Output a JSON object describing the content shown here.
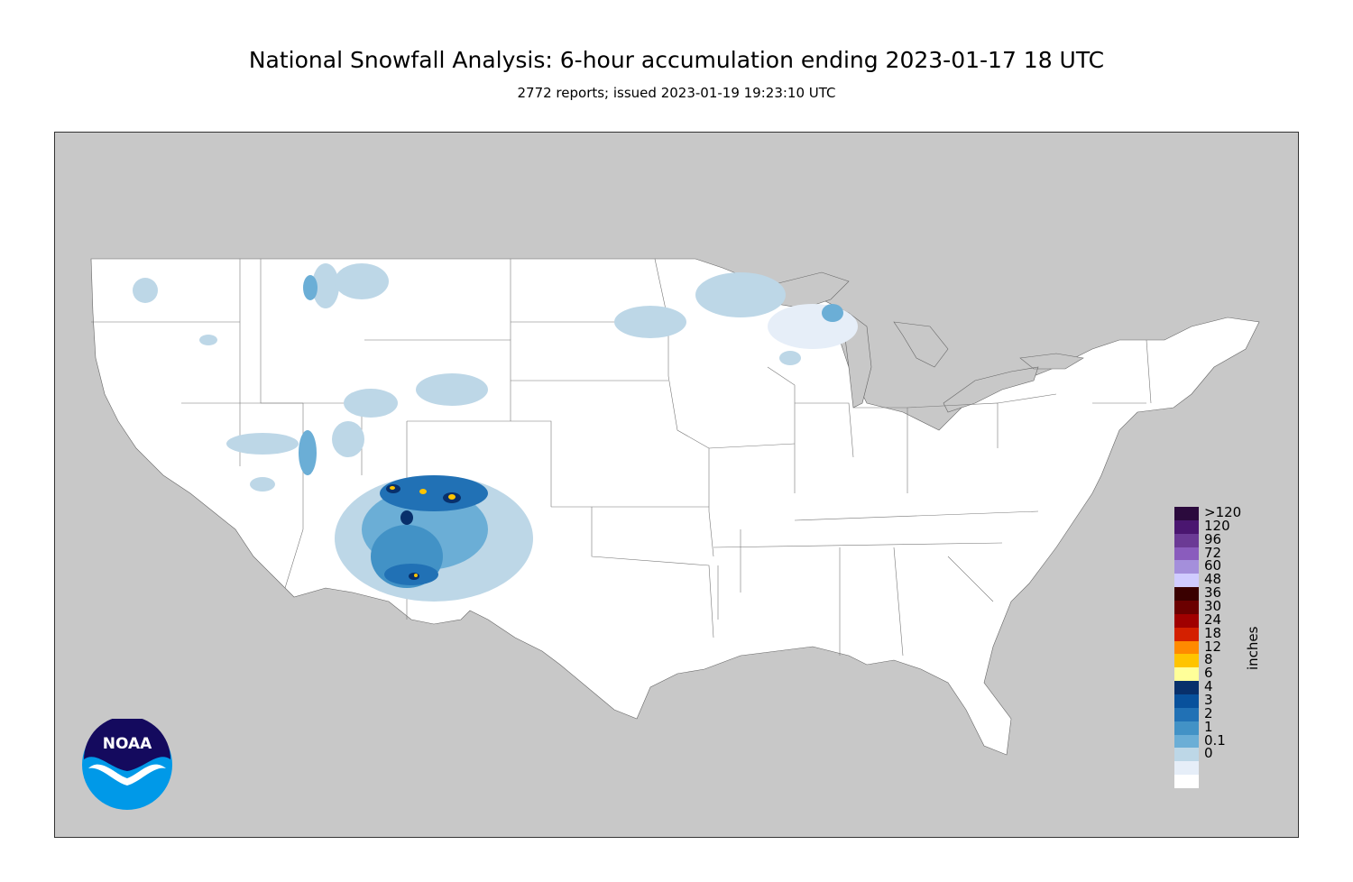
{
  "header": {
    "title": "National Snowfall Analysis: 6-hour accumulation ending 2023-01-17 18 UTC",
    "subtitle": "2772 reports; issued 2023-01-19 19:23:10 UTC"
  },
  "map": {
    "background_color": "#c8c8c8",
    "land_color": "#ffffff",
    "water_color": "#c8c8c8"
  },
  "legend": {
    "units": "inches",
    "levels": [
      {
        "label": ">120",
        "color": "#2b0a3d"
      },
      {
        "label": "120",
        "color": "#4a1670"
      },
      {
        "label": "96",
        "color": "#6b3a95"
      },
      {
        "label": "72",
        "color": "#8a5cbd"
      },
      {
        "label": "60",
        "color": "#a48fdb"
      },
      {
        "label": "48",
        "color": "#d0ccff"
      },
      {
        "label": "36",
        "color": "#3a0000"
      },
      {
        "label": "30",
        "color": "#6b0000"
      },
      {
        "label": "24",
        "color": "#a00000"
      },
      {
        "label": "18",
        "color": "#d42000"
      },
      {
        "label": "12",
        "color": "#ff8a00"
      },
      {
        "label": "8",
        "color": "#ffc400"
      },
      {
        "label": "6",
        "color": "#ffff99"
      },
      {
        "label": "4",
        "color": "#08306b"
      },
      {
        "label": "3",
        "color": "#08519c"
      },
      {
        "label": "2",
        "color": "#2171b5"
      },
      {
        "label": "1",
        "color": "#4292c6"
      },
      {
        "label": "0.1",
        "color": "#6baed6"
      },
      {
        "label": "0",
        "color": "#bdd7e7"
      }
    ],
    "bottom_colors": [
      "#e6eef8",
      "#ffffff"
    ]
  },
  "logo": {
    "text": "NOAA",
    "icon": "noaa-logo-icon"
  }
}
